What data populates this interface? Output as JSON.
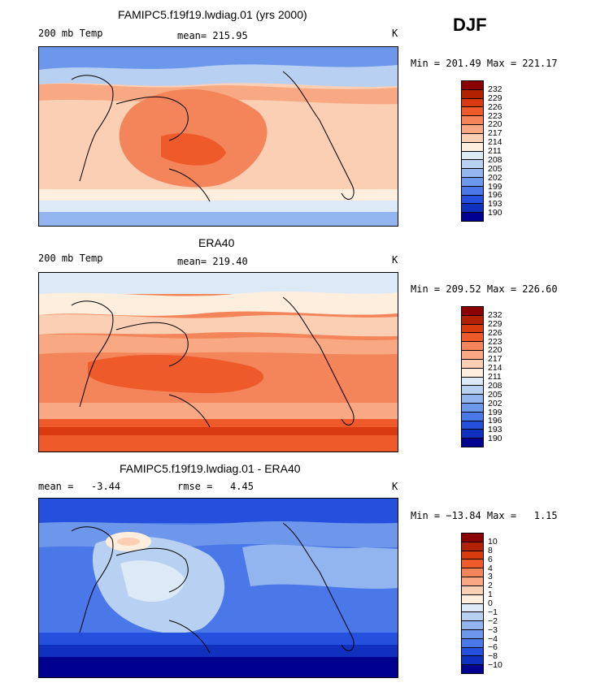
{
  "season": "DJF",
  "scale_colors": [
    "#8b0000",
    "#b22200",
    "#d93a10",
    "#ee5a2a",
    "#f4845a",
    "#f8a883",
    "#fbcfb3",
    "#fdeede",
    "#dce9f6",
    "#b8d1f2",
    "#93b5ef",
    "#6d97ea",
    "#4a78e8",
    "#2550dd",
    "#1030c0",
    "#000090"
  ],
  "chart_data": [
    {
      "type": "heatmap",
      "title": "FAMIPC5.f19f19.lwdiag.01 (yrs 2000)",
      "left_label": "200 mb Temp",
      "center_label": "mean= 215.95",
      "right_label": "K",
      "minmax": "Min = 201.49 Max = 221.17",
      "field": "model",
      "levels": [
        "232",
        "229",
        "226",
        "223",
        "220",
        "217",
        "214",
        "211",
        "208",
        "205",
        "202",
        "199",
        "196",
        "193",
        "190"
      ]
    },
    {
      "type": "heatmap",
      "title": "ERA40",
      "left_label": "200 mb Temp",
      "center_label": "mean= 219.40",
      "right_label": "K",
      "minmax": "Min = 209.52 Max = 226.60",
      "field": "obs",
      "levels": [
        "232",
        "229",
        "226",
        "223",
        "220",
        "217",
        "214",
        "211",
        "208",
        "205",
        "202",
        "199",
        "196",
        "193",
        "190"
      ]
    },
    {
      "type": "heatmap",
      "title": "FAMIPC5.f19f19.lwdiag.01 - ERA40",
      "left_label": "mean =   -3.44",
      "center_label": "rmse =   4.45",
      "right_label": "K",
      "minmax": "Min = −13.84 Max =   1.15",
      "field": "diff",
      "levels": [
        "10",
        "8",
        "6",
        "4",
        "3",
        "2",
        "1",
        "0",
        "−1",
        "−2",
        "−3",
        "−4",
        "−6",
        "−8",
        "−10"
      ]
    }
  ]
}
